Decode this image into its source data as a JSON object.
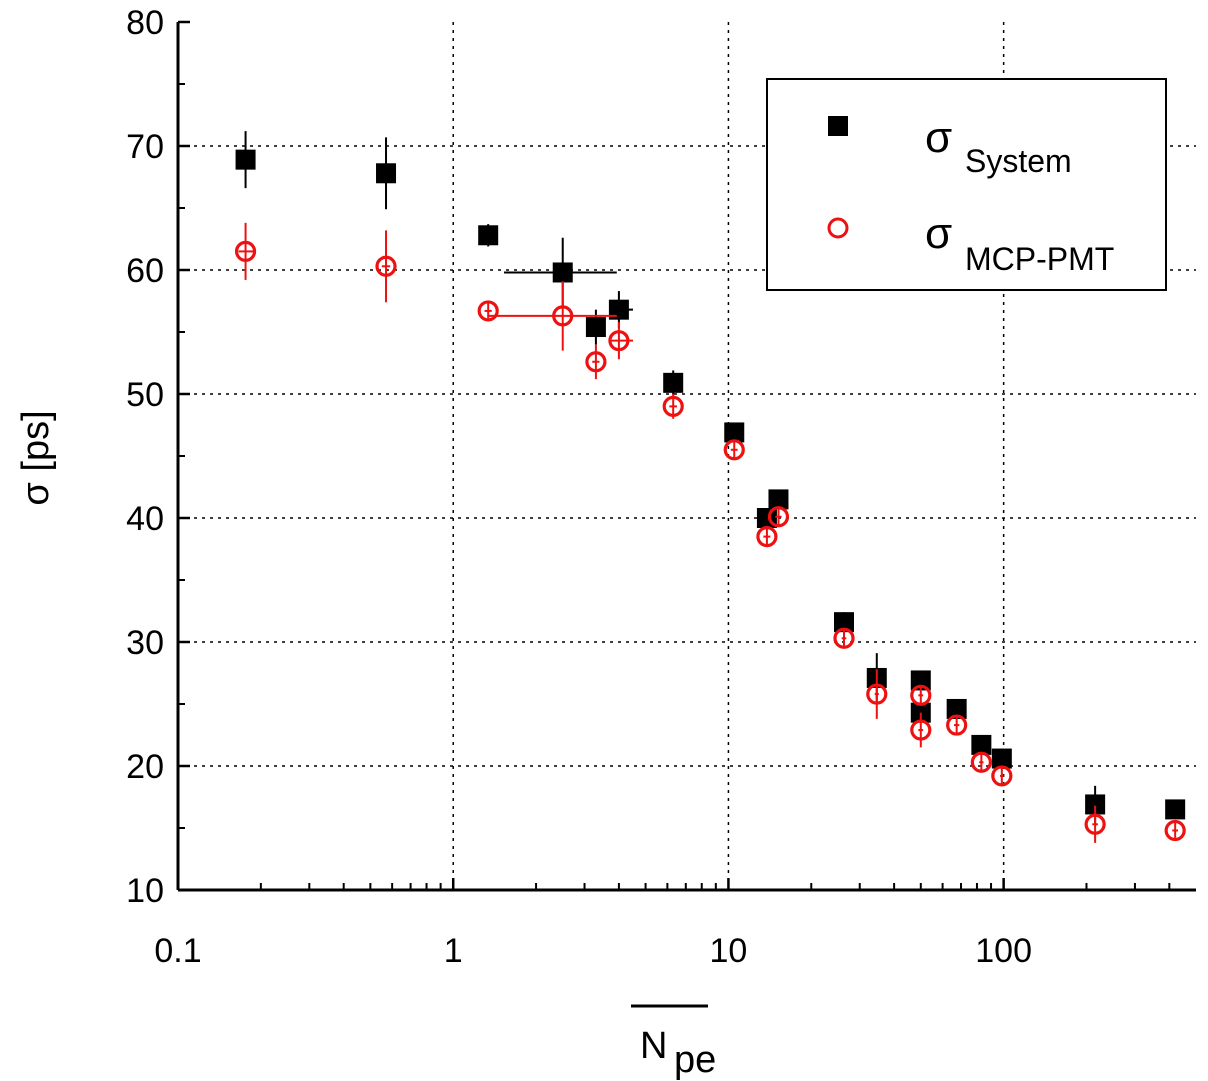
{
  "chart_data": {
    "type": "scatter",
    "title": "",
    "xlabel_main": "N",
    "xlabel_sub": "pe",
    "ylabel": "σ [ps]",
    "xscale": "log",
    "xlim": [
      0.1,
      500
    ],
    "ylim": [
      10,
      80
    ],
    "x_ticks": [
      0.1,
      1,
      10,
      100
    ],
    "x_tick_labels": [
      "0.1",
      "1",
      "10",
      "100"
    ],
    "y_ticks": [
      10,
      20,
      30,
      40,
      50,
      60,
      70,
      80
    ],
    "y_tick_labels": [
      "10",
      "20",
      "30",
      "40",
      "50",
      "60",
      "70",
      "80"
    ],
    "grid": true,
    "legend_position": "top-right",
    "series": [
      {
        "name": "σ",
        "name_sub": "System",
        "marker": "filled-square",
        "color": "#000000",
        "points": [
          {
            "x": 0.176,
            "y": 68.9,
            "yerr": 2.3,
            "xlo": 0.166,
            "xhi": 0.188
          },
          {
            "x": 0.57,
            "y": 67.8,
            "yerr": 2.9,
            "xlo": 0.55,
            "xhi": 0.59
          },
          {
            "x": 1.34,
            "y": 62.8,
            "yerr": 0.9,
            "xlo": 1.3,
            "xhi": 1.38
          },
          {
            "x": 2.5,
            "y": 59.8,
            "yerr": 2.8,
            "xlo": 1.53,
            "xhi": 3.93
          },
          {
            "x": 3.3,
            "y": 55.4,
            "yerr": 1.4,
            "xlo": 3.2,
            "xhi": 3.4
          },
          {
            "x": 4.0,
            "y": 56.8,
            "yerr": 1.5,
            "xlo": 3.7,
            "xhi": 4.5
          },
          {
            "x": 6.3,
            "y": 50.9,
            "yerr": 1.0,
            "xlo": 6.1,
            "xhi": 6.5
          },
          {
            "x": 10.5,
            "y": 46.9,
            "yerr": 0.8,
            "xlo": 10.2,
            "xhi": 10.8
          },
          {
            "x": 13.8,
            "y": 40.0,
            "yerr": 0.8,
            "xlo": 13.4,
            "xhi": 14.2
          },
          {
            "x": 15.2,
            "y": 41.5,
            "yerr": 0.8,
            "xlo": 14.8,
            "xhi": 15.6
          },
          {
            "x": 26.3,
            "y": 31.6,
            "yerr": 0.8,
            "xlo": 25.8,
            "xhi": 26.8
          },
          {
            "x": 34.6,
            "y": 27.1,
            "yerr": 2.0,
            "xlo": 34.0,
            "xhi": 35.2
          },
          {
            "x": 50.0,
            "y": 26.9,
            "yerr": 0.8,
            "xlo": 49.0,
            "xhi": 51.0
          },
          {
            "x": 50.0,
            "y": 24.3,
            "yerr": 0.8,
            "xlo": 49.0,
            "xhi": 51.0
          },
          {
            "x": 67.5,
            "y": 24.6,
            "yerr": 0.8,
            "xlo": 66.0,
            "xhi": 69.0
          },
          {
            "x": 83.0,
            "y": 21.7,
            "yerr": 0.8,
            "xlo": 81.5,
            "xhi": 84.5
          },
          {
            "x": 98.5,
            "y": 20.6,
            "yerr": 0.8,
            "xlo": 97.0,
            "xhi": 100.0
          },
          {
            "x": 215.0,
            "y": 16.9,
            "yerr": 1.5,
            "xlo": 210.0,
            "xhi": 220.0
          },
          {
            "x": 420.0,
            "y": 16.5,
            "yerr": 0.6,
            "xlo": 410.0,
            "xhi": 430.0
          }
        ]
      },
      {
        "name": "σ",
        "name_sub": "MCP-PMT",
        "marker": "open-circle",
        "color": "#ee1111",
        "points": [
          {
            "x": 0.176,
            "y": 61.5,
            "yerr": 2.3,
            "xlo": 0.166,
            "xhi": 0.188
          },
          {
            "x": 0.57,
            "y": 60.3,
            "yerr": 2.9,
            "xlo": 0.55,
            "xhi": 0.59
          },
          {
            "x": 1.34,
            "y": 56.7,
            "yerr": 0.6,
            "xlo": 1.3,
            "xhi": 1.38
          },
          {
            "x": 2.5,
            "y": 56.3,
            "yerr": 2.8,
            "xlo": 1.34,
            "xhi": 3.93
          },
          {
            "x": 3.3,
            "y": 52.6,
            "yerr": 1.4,
            "xlo": 3.2,
            "xhi": 3.4
          },
          {
            "x": 4.0,
            "y": 54.3,
            "yerr": 1.5,
            "xlo": 3.7,
            "xhi": 4.5
          },
          {
            "x": 6.3,
            "y": 49.0,
            "yerr": 1.0,
            "xlo": 6.1,
            "xhi": 6.5
          },
          {
            "x": 10.5,
            "y": 45.5,
            "yerr": 0.8,
            "xlo": 10.2,
            "xhi": 10.8
          },
          {
            "x": 13.8,
            "y": 38.5,
            "yerr": 0.8,
            "xlo": 13.4,
            "xhi": 14.2
          },
          {
            "x": 15.2,
            "y": 40.1,
            "yerr": 0.8,
            "xlo": 14.8,
            "xhi": 15.6
          },
          {
            "x": 26.3,
            "y": 30.3,
            "yerr": 0.8,
            "xlo": 25.8,
            "xhi": 26.8
          },
          {
            "x": 34.6,
            "y": 25.8,
            "yerr": 2.0,
            "xlo": 34.0,
            "xhi": 35.2
          },
          {
            "x": 50.0,
            "y": 25.7,
            "yerr": 0.8,
            "xlo": 49.0,
            "xhi": 51.0
          },
          {
            "x": 50.0,
            "y": 22.9,
            "yerr": 1.4,
            "xlo": 49.0,
            "xhi": 51.0
          },
          {
            "x": 67.5,
            "y": 23.3,
            "yerr": 0.8,
            "xlo": 66.0,
            "xhi": 69.0
          },
          {
            "x": 83.0,
            "y": 20.3,
            "yerr": 0.8,
            "xlo": 81.5,
            "xhi": 84.5
          },
          {
            "x": 98.5,
            "y": 19.2,
            "yerr": 0.8,
            "xlo": 97.0,
            "xhi": 100.0
          },
          {
            "x": 215.0,
            "y": 15.3,
            "yerr": 1.5,
            "xlo": 210.0,
            "xhi": 220.0
          },
          {
            "x": 420.0,
            "y": 14.8,
            "yerr": 0.6,
            "xlo": 410.0,
            "xhi": 430.0
          }
        ]
      }
    ]
  }
}
